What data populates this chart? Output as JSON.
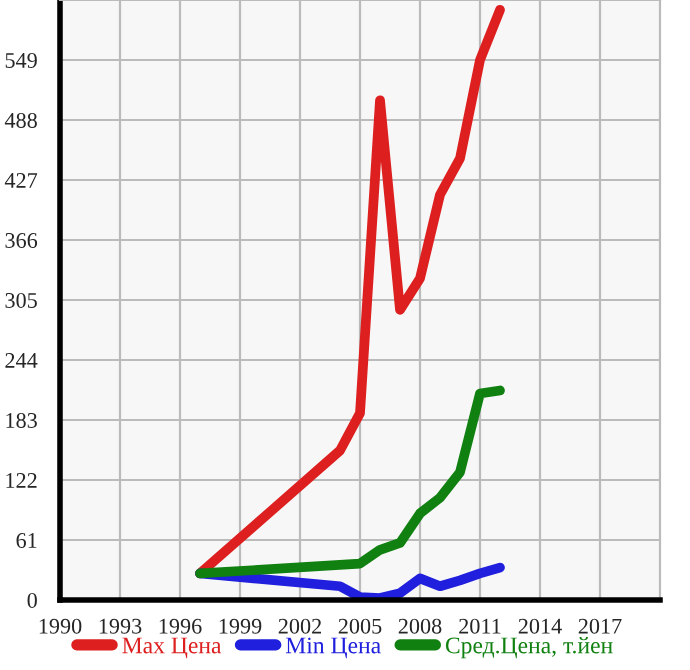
{
  "chart_data": {
    "type": "line",
    "xlim": [
      1990,
      2020
    ],
    "xticks": [
      1990,
      1993,
      1996,
      1999,
      2002,
      2005,
      2008,
      2011,
      2014,
      2017
    ],
    "ylim": [
      0,
      610
    ],
    "yticks": [
      0,
      61,
      122,
      183,
      244,
      305,
      366,
      427,
      488,
      549
    ],
    "grid": true,
    "legend": "bottom",
    "marker": "none",
    "line_style": "solid",
    "series": [
      {
        "name": "Max Цена",
        "color": "#dd1f1f",
        "x": [
          1997,
          2004,
          2005,
          2006,
          2007,
          2008,
          2009,
          2010,
          2011,
          2012
        ],
        "values": [
          27,
          152,
          190,
          508,
          295,
          327,
          412,
          449,
          549,
          600
        ]
      },
      {
        "name": "Min Цена",
        "color": "#1f1fdd",
        "x": [
          1997,
          2004,
          2005,
          2006,
          2007,
          2008,
          2009,
          2010,
          2011,
          2012
        ],
        "values": [
          27,
          14,
          3,
          2,
          7,
          22,
          14,
          20,
          27,
          33
        ]
      },
      {
        "name": "Сред.Цена, т.йен",
        "color": "#108010",
        "x": [
          1997,
          2005,
          2006,
          2007,
          2008,
          2009,
          2010,
          2011,
          2012
        ],
        "values": [
          27,
          37,
          51,
          58,
          88,
          104,
          130,
          210,
          213
        ]
      }
    ]
  }
}
